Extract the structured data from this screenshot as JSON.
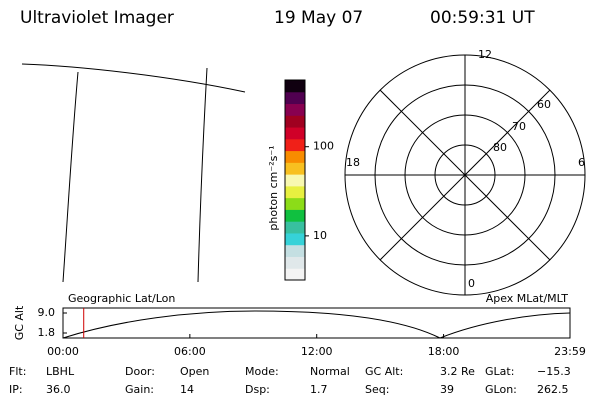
{
  "header": {
    "instrument": "Ultraviolet Imager",
    "date": "19 May 07",
    "time": "00:59:31 UT"
  },
  "colorbar": {
    "label": "photon cm⁻²s⁻¹",
    "log": true,
    "ylim": [
      3.2,
      560
    ],
    "ticks": [
      10,
      100
    ]
  },
  "polar": {
    "mlt_labels": {
      "top": 12,
      "right": 6,
      "bottom": 0,
      "left": 18
    },
    "lat_labels": [
      60,
      70,
      80
    ]
  },
  "altitude_plot": {
    "left_label": "Geographic Lat/Lon",
    "right_label": "Apex MLat/MLT",
    "ylabel": "GC Alt",
    "ylim": [
      0,
      10.8
    ],
    "yticks": [
      {
        "value": 9,
        "label": "9.0"
      },
      1.8
    ],
    "xlim": [
      0,
      23.98
    ],
    "xticks": [
      {
        "value": 0,
        "label": "00:00"
      },
      {
        "value": 6,
        "label": "06:00"
      },
      {
        "value": 12,
        "label": "12:00"
      },
      {
        "value": 18,
        "label": "18:00"
      },
      {
        "value": 23.98,
        "label": "23:59"
      }
    ],
    "marker": 0.98
  },
  "footer": {
    "rows": [
      [
        [
          "Flt:",
          "LBHL"
        ],
        [
          "Door:",
          "Open"
        ],
        [
          "Mode:",
          "Normal"
        ],
        [
          "GC Alt:",
          "3.2 Re"
        ],
        [
          "GLat:",
          "−15.3"
        ]
      ],
      [
        [
          "IP:",
          "36.0"
        ],
        [
          "Gain:",
          "14"
        ],
        [
          "Dsp:",
          "1.7"
        ],
        [
          "Seq:",
          "39"
        ],
        [
          "GLon:",
          "262.5"
        ]
      ]
    ]
  }
}
